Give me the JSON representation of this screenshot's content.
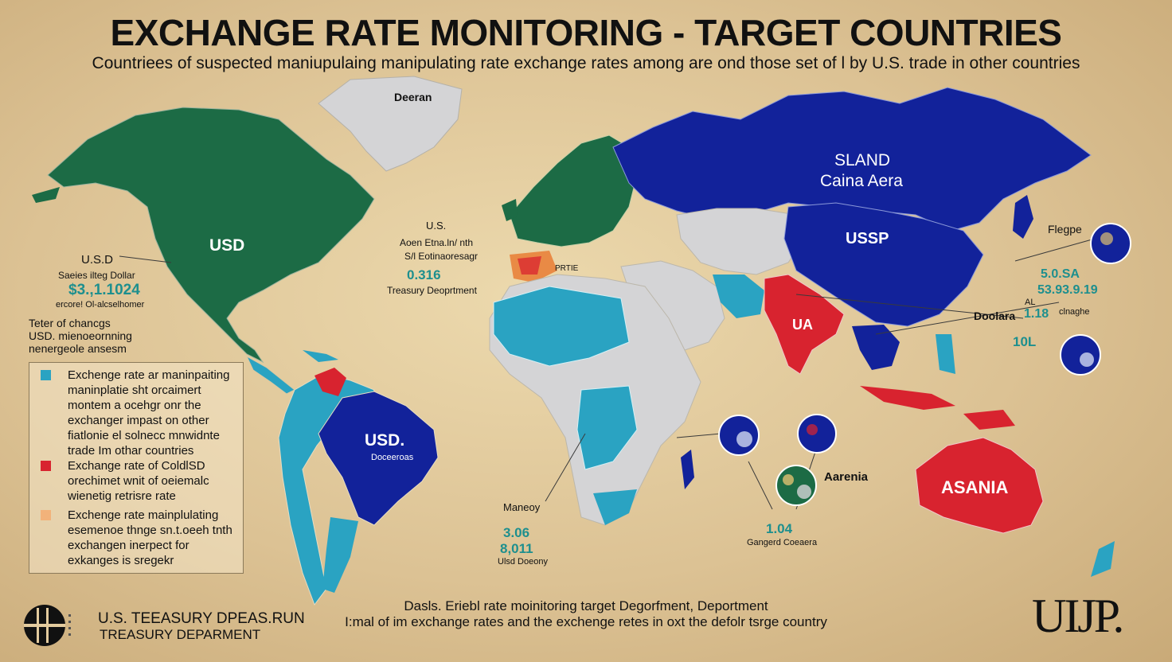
{
  "header": {
    "title": "EXCHANGE RATE MONITORING - TARGET COUNTRIES",
    "subtitle": "Countriees of suspected maniupulaing manipulating rate exchange rates among are ond those set of l by U.S. trade in other countries"
  },
  "colors": {
    "background": "#e3cb9e",
    "green": "#1c6b45",
    "navy": "#12229a",
    "teal": "#2aa3c2",
    "red": "#d8232f",
    "gray": "#d4d4d6",
    "orange": "#e98a45"
  },
  "map_labels": {
    "greenland": "Deeran",
    "north_america_currency": "USD",
    "russia_line1": "SLAND",
    "russia_line2": "Caina Aera",
    "china": "USSP",
    "india": "UA",
    "brazil_currency": "USD.",
    "brazil_sub": "Doceeroas",
    "australia": "ASANIA",
    "europe_marker": "PRTIE",
    "southeast_asia": "Aarenia"
  },
  "annotations": {
    "west_usd_label": "U.S.D",
    "west_series": "Saeies ilteg Dollar",
    "west_value": "$3.,1.1024",
    "west_caption": "ercore! Ol-alcselhomer",
    "west_note": [
      "Teter of chancgs",
      "USD. mienoeornning",
      "nenergeole ansesm"
    ],
    "atlantic_us": "U.S.",
    "atlantic_line1": "Aoen Etna.ln/ nth",
    "atlantic_line2": "S/l Eotinaoresagr",
    "atlantic_value": "0.316",
    "atlantic_caption": "Treasury Deoprtment",
    "pacific_title": "Flegpe",
    "pacific_value1": "5.0.SA",
    "pacific_value2": "53.93.9.19",
    "pacific_doolara": "Doolara",
    "pacific_al": "AL",
    "pacific_mid": "1.18",
    "pacific_change": "clnaghe",
    "pacific_value3": "10L",
    "africa_label": "Maneoy",
    "africa_value1": "3.06",
    "africa_value2": "8,011",
    "africa_caption": "Ulsd Doeony",
    "indian_value": "1.04",
    "indian_caption": "Gangerd Coeaera"
  },
  "legend": {
    "items": [
      {
        "color": "#2aa3c2",
        "lines": [
          "Exchenge rate ar maninpaiting",
          "maninplatie sht orcaimert",
          "montem a ocehgr onr the",
          "exchanger impast on other",
          "fiatlonie el solnecc mnwidnte",
          "trade Im othar countries"
        ]
      },
      {
        "color": "#d8232f",
        "lines": [
          "Exchange rate of ColdlSD",
          "orechimet wnit of oeiemalc",
          "wienetig retrisre rate"
        ]
      },
      {
        "color": "#f2b27a",
        "lines": [
          "Exchenge rate mainplulating",
          "esemenoe thnge sn.t.oeeh tnth",
          "exchangen inerpect for",
          "exkanges is sregekr"
        ]
      }
    ]
  },
  "footer": {
    "line1": "Dasls. Eriebl rate moinitoring target Degorfment, Deportment",
    "line2": "I:mal of im exchange rates and the exchenge retes in oxt the defolr tsrge country",
    "agency_line1": "U.S. TEEASURY DPEAS.RUN",
    "agency_line2": "TREASURY DEPARMENT",
    "mark": "UIJP."
  }
}
